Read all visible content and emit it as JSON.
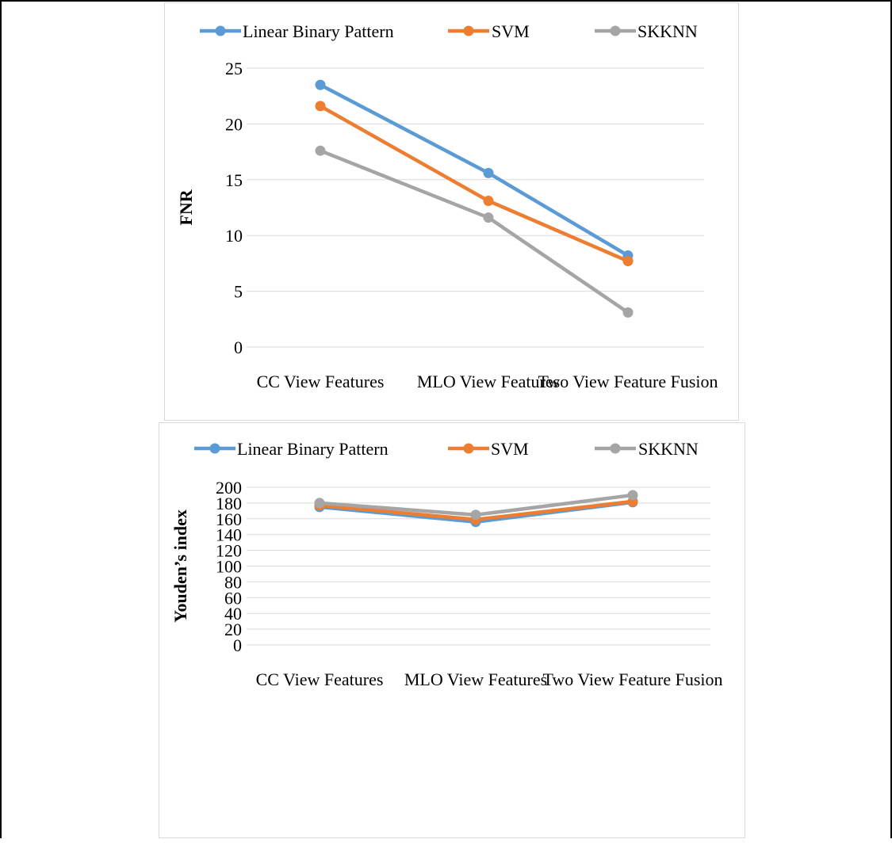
{
  "colors": {
    "linear_binary_pattern": "#5B9BD5",
    "svm": "#ED7D31",
    "skknn": "#A5A5A5",
    "gridline": "#D9D9D9",
    "text": "#000000"
  },
  "chart_data": [
    {
      "type": "line",
      "title": "",
      "xlabel": "",
      "ylabel": "FNR",
      "categories": [
        "CC View Features",
        "MLO View Features",
        "Two View Feature Fusion"
      ],
      "ylim": [
        0,
        25
      ],
      "yticks": [
        "0",
        "5",
        "10",
        "15",
        "20",
        "25"
      ],
      "grid": true,
      "legend_position": "top",
      "series": [
        {
          "name": "Linear Binary Pattern",
          "values": [
            23.5,
            15.6,
            8.2
          ]
        },
        {
          "name": "SVM",
          "values": [
            21.6,
            13.1,
            7.7
          ]
        },
        {
          "name": "SKKNN",
          "values": [
            17.6,
            11.6,
            3.1
          ]
        }
      ]
    },
    {
      "type": "line",
      "title": "",
      "xlabel": "",
      "ylabel": "Youden’s index",
      "categories": [
        "CC View Features",
        "MLO View Features",
        "Two View Feature Fusion"
      ],
      "ylim": [
        0,
        200
      ],
      "yticks": [
        "0",
        "20",
        "40",
        "60",
        "80",
        "100",
        "120",
        "140",
        "160",
        "180",
        "200"
      ],
      "grid": true,
      "legend_position": "top",
      "series": [
        {
          "name": "Linear Binary Pattern",
          "values": [
            175,
            156,
            181
          ]
        },
        {
          "name": "SVM",
          "values": [
            177,
            159,
            182
          ]
        },
        {
          "name": "SKKNN",
          "values": [
            180,
            165,
            190
          ]
        }
      ]
    }
  ]
}
